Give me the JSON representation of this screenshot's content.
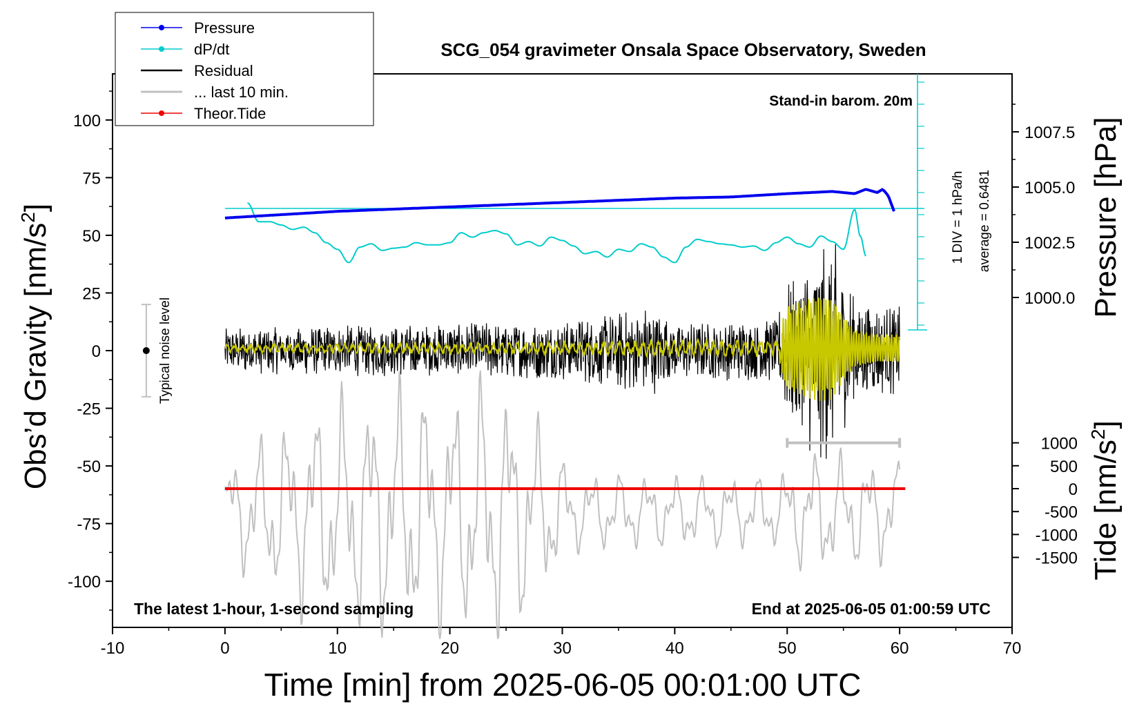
{
  "chart_data": {
    "type": "line",
    "title": "SCG_054 gravimeter Onsala Space Observatory, Sweden",
    "xlabel": "Time [min] from 2025-06-05 00:01:00 UTC",
    "ylabel_left": "Obs’d Gravity [nm/s",
    "ylabel_left_sup": "2",
    "ylabel_left_tail": "]",
    "ylabel_right_pressure": "Pressure [hPa]",
    "ylabel_right_tide": "Tide [nm/s",
    "ylabel_right_tide_sup": "2",
    "ylabel_right_tide_tail": "]",
    "xlim": [
      -10,
      70
    ],
    "ylim_left": [
      -120,
      120
    ],
    "x_ticks": [
      "-10",
      "0",
      "10",
      "20",
      "30",
      "40",
      "50",
      "60",
      "70"
    ],
    "y_ticks_left": [
      "100",
      "75",
      "50",
      "25",
      "0",
      "-25",
      "-50",
      "-75",
      "-100"
    ],
    "pressure_axis": {
      "ticks": [
        "1007.5",
        "1005.0",
        "1002.5",
        "1000.0"
      ]
    },
    "tide_axis": {
      "ticks": [
        "1000",
        "500",
        "0",
        "-500",
        "-1000",
        "-1500"
      ]
    },
    "legend": {
      "placement": "top-left",
      "entries": [
        {
          "label": "Pressure",
          "color": "#0000ee"
        },
        {
          "label": "dP/dt",
          "color": "#00cccc"
        },
        {
          "label": "Residual",
          "color": "#000000"
        },
        {
          "label": "... last 10 min.",
          "color": "#c0c0c0"
        },
        {
          "label": "Theor.Tide",
          "color": "#ee0000"
        }
      ]
    },
    "annotations": {
      "barometer": "Stand-in barom. 20m",
      "dpdt_scale": "1 DIV = 1 hPa/h",
      "dpdt_average": "average = 0.6481",
      "noise": "Typical noise level",
      "bottom_left": "The latest 1-hour, 1-second sampling",
      "bottom_right": "End at 2025-06-05 01:00:59 UTC"
    },
    "series": [
      {
        "name": "Pressure",
        "color": "#0000ee",
        "unit": "hPa",
        "x": [
          0,
          5,
          10,
          15,
          20,
          25,
          30,
          35,
          40,
          45,
          50,
          54,
          56,
          57,
          58,
          58.5,
          59,
          59.5
        ],
        "values": [
          1003.6,
          1003.75,
          1003.9,
          1004.0,
          1004.1,
          1004.2,
          1004.3,
          1004.4,
          1004.5,
          1004.55,
          1004.7,
          1004.8,
          1004.7,
          1004.9,
          1004.75,
          1004.9,
          1004.6,
          1003.9
        ]
      },
      {
        "name": "dP/dt",
        "color": "#00cccc",
        "unit": "hPa/h, 1 DIV per tick",
        "x": [
          2,
          3,
          4,
          5,
          6,
          7,
          8,
          9,
          10,
          11,
          12,
          13,
          14,
          15,
          16,
          17,
          18,
          19,
          20,
          21,
          22,
          23,
          24,
          25,
          26,
          27,
          28,
          29,
          30,
          31,
          32,
          33,
          34,
          35,
          36,
          37,
          38,
          39,
          40,
          41,
          42,
          43,
          44,
          45,
          46,
          47,
          48,
          49,
          50,
          51,
          52,
          53,
          54,
          55,
          56,
          56.5,
          57
        ],
        "values": [
          1.0,
          -0.7,
          -0.7,
          -1.0,
          -1.4,
          -1.2,
          -1.7,
          -2.6,
          -3.2,
          -4.4,
          -3.0,
          -2.7,
          -3.3,
          -3.1,
          -3.0,
          -2.6,
          -2.8,
          -2.8,
          -2.6,
          -1.7,
          -2.1,
          -1.7,
          -1.5,
          -1.8,
          -2.8,
          -2.5,
          -2.9,
          -2.1,
          -2.4,
          -2.9,
          -3.6,
          -3.4,
          -3.9,
          -3.2,
          -3.4,
          -2.7,
          -3.0,
          -3.9,
          -4.4,
          -3.0,
          -2.3,
          -2.5,
          -2.7,
          -2.8,
          -3.0,
          -2.9,
          -3.3,
          -2.6,
          -2.1,
          -2.7,
          -3.0,
          -2.0,
          -2.5,
          -3.2,
          0.4,
          -2.0,
          -3.8
        ]
      },
      {
        "name": "Residual",
        "color": "#000000",
        "unit": "nm/s2",
        "x": [
          0,
          10,
          20,
          30,
          38,
          40,
          49,
          50,
          52,
          53,
          54,
          55,
          56,
          57,
          58,
          59,
          60
        ],
        "envelope": [
          10,
          11,
          12,
          13,
          20,
          12,
          14,
          30,
          45,
          50,
          52,
          35,
          26,
          22,
          21,
          20,
          22
        ]
      },
      {
        "name": "Residual (smoothed)",
        "color": "#c8c800",
        "unit": "nm/s2",
        "x": [
          0,
          30,
          40,
          49,
          50,
          52,
          53,
          54,
          55,
          56,
          57,
          58,
          59,
          60
        ],
        "envelope": [
          2,
          3,
          4,
          4,
          18,
          22,
          23,
          22,
          14,
          8,
          7,
          6,
          6,
          6
        ]
      },
      {
        "name": "... last 10 min.",
        "color": "#c0c0c0",
        "unit": "nm/s2 (last 10 min, stretched over 0–60)",
        "x": [
          0,
          4,
          8,
          12,
          16,
          20,
          24,
          28,
          31,
          40,
          49,
          52,
          56,
          60
        ],
        "envelope": [
          25,
          40,
          55,
          60,
          65,
          60,
          70,
          45,
          20,
          18,
          18,
          32,
          28,
          25
        ]
      },
      {
        "name": "Theor.Tide",
        "color": "#ee0000",
        "unit": "nm/s2",
        "x": [
          0,
          60.5
        ],
        "values": [
          0,
          0
        ]
      }
    ],
    "last10_bar": {
      "x_range": [
        50,
        60
      ],
      "y": -40
    },
    "noise_bar": {
      "x": -7,
      "y": 0,
      "range": [
        -20,
        20
      ]
    }
  }
}
